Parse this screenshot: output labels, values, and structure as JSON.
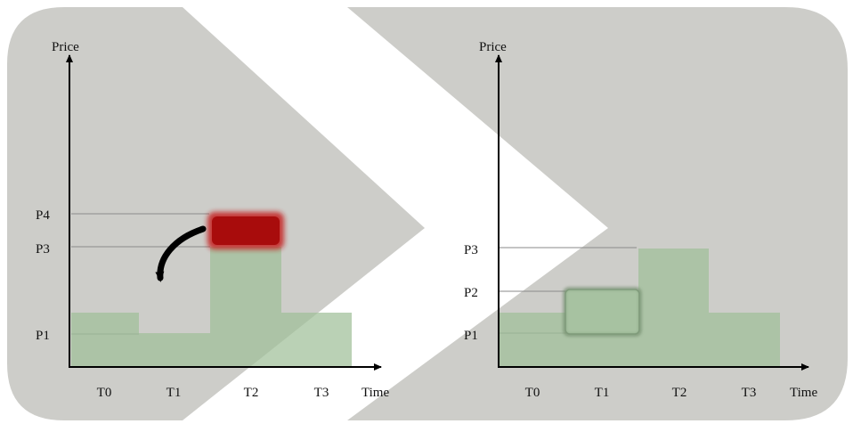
{
  "colors": {
    "background_shape": "#cdcdc9",
    "bar_fill": "#9fbf98",
    "bar_opacity": 0.72,
    "axis": "#000000",
    "guide_line": "#8a8a8a",
    "highlight_red": "#b81010",
    "curved_arrow": "#000000"
  },
  "left_panel": {
    "y_axis_label": "Price",
    "x_axis_label": "Time",
    "y_ticks": [
      "P1",
      "P3",
      "P4"
    ],
    "x_ticks": [
      "T0",
      "T1",
      "T2",
      "T3"
    ],
    "highlight": "red block above T2 bar at price P4",
    "arrow": "curved arrow pointing down toward T1"
  },
  "right_panel": {
    "y_axis_label": "Price",
    "x_axis_label": "Time",
    "y_ticks": [
      "P1",
      "P2",
      "P3"
    ],
    "x_ticks": [
      "T0",
      "T1",
      "T2",
      "T3"
    ],
    "highlight": "outlined T1 bar at price P2"
  },
  "chart_data": [
    {
      "type": "bar",
      "panel": "left",
      "categories": [
        "T0",
        "T1",
        "T2",
        "T3"
      ],
      "values": [
        "P1+",
        "below P1",
        "P3",
        "P1+"
      ],
      "value_levels": [
        1.0,
        0.6,
        3.0,
        1.0
      ],
      "highlight_block": {
        "category": "T2",
        "from": "P3",
        "to": "P4",
        "color": "red"
      },
      "xlabel": "Time",
      "ylabel": "Price"
    },
    {
      "type": "bar",
      "panel": "right",
      "categories": [
        "T0",
        "T1",
        "T2",
        "T3"
      ],
      "values": [
        "P1+",
        "P2",
        "P3",
        "P1+"
      ],
      "value_levels": [
        1.0,
        2.0,
        3.0,
        1.0
      ],
      "highlight_bar": "T1",
      "xlabel": "Time",
      "ylabel": "Price"
    }
  ]
}
